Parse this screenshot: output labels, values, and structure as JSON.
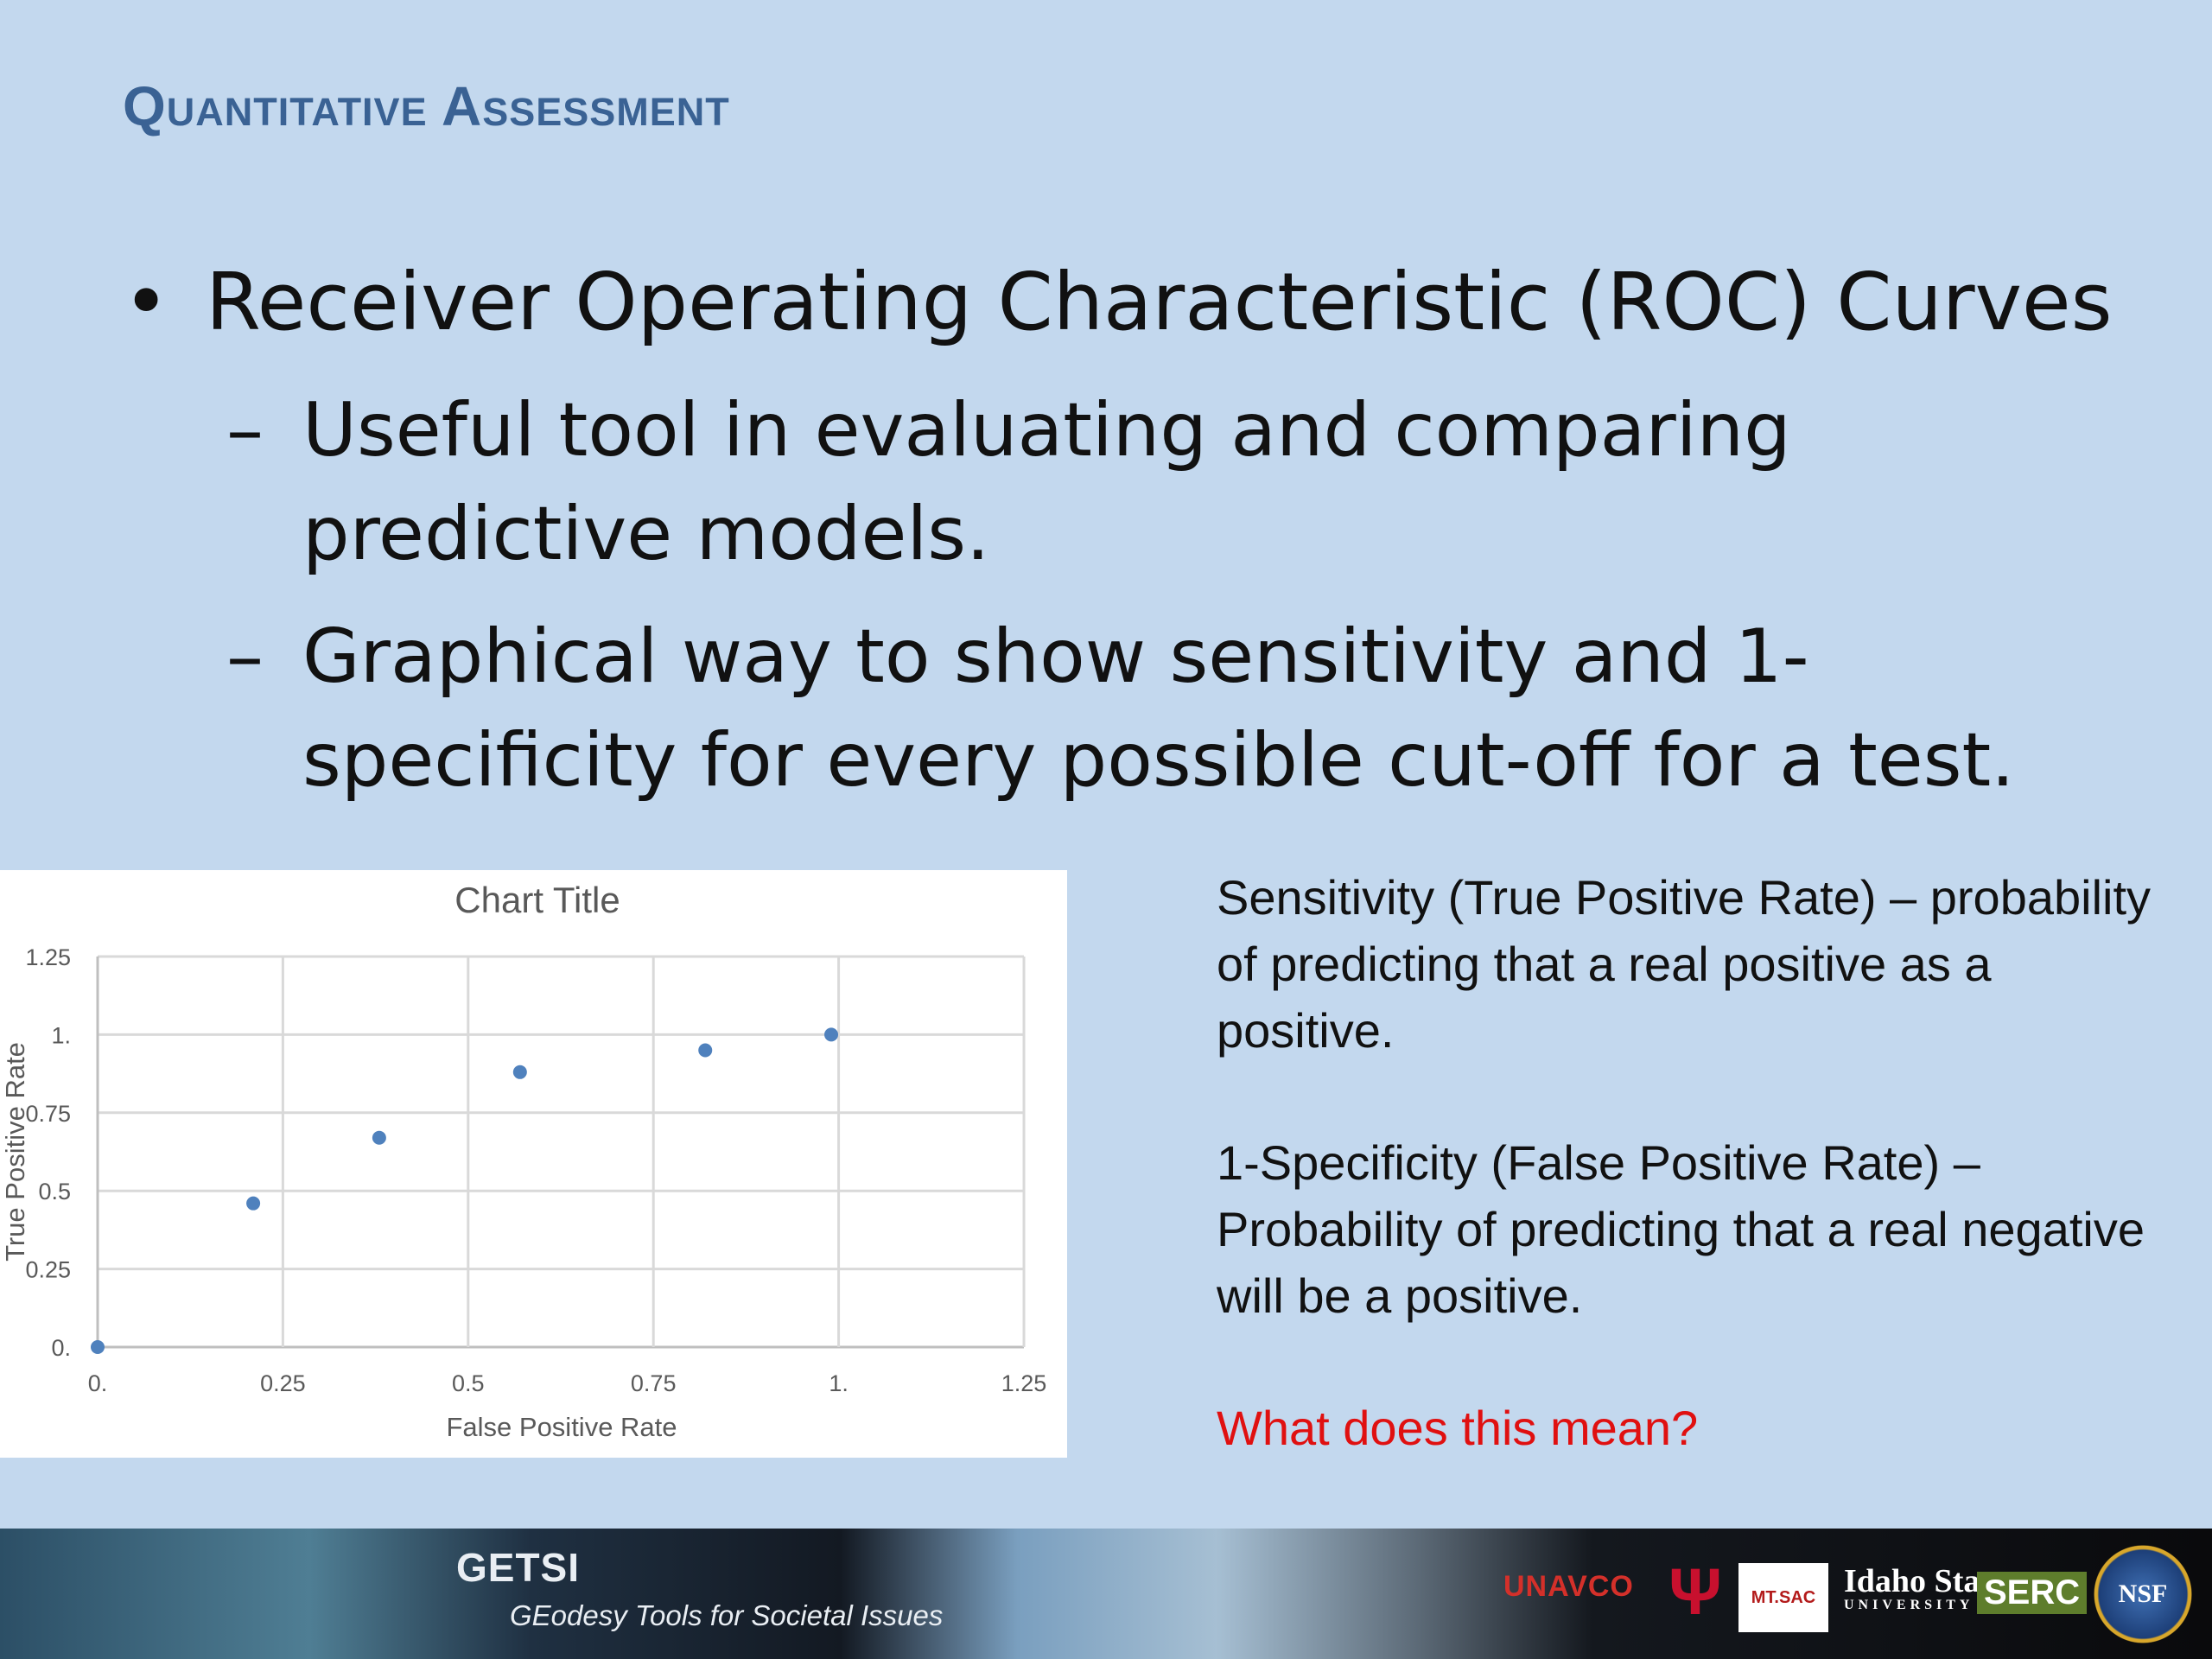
{
  "slide": {
    "title": "Quantitative Assessment",
    "bullet": "Receiver Operating Characteristic (ROC) Curves",
    "bullet_symbol": "•",
    "dash_symbol": "–",
    "sub_bullets": [
      "Useful tool in evaluating and comparing predictive models.",
      "Graphical way to show sensitivity and 1-specificity for every possible cut-off for a test."
    ],
    "definitions": [
      "Sensitivity (True Positive Rate) – probability of predicting that a real positive as a positive.",
      "1-Specificity (False Positive Rate) – Probability of predicting that a real negative will be a positive."
    ],
    "question": "What does this mean?"
  },
  "footer": {
    "banner_title": "GETSI",
    "banner_subtitle": "GEodesy Tools for Societal Issues",
    "logos": {
      "unavco": "UNAVCO",
      "iu": "Ψ",
      "mtsac": "MT.SAC",
      "idaho_main": "Idaho State",
      "idaho_sub": "UNIVERSITY",
      "serc": "SERC",
      "nsf": "NSF"
    }
  },
  "chart_data": {
    "type": "scatter",
    "title": "Chart Title",
    "xlabel": "False Positive Rate",
    "ylabel": "True Positive Rate",
    "xlim": [
      0,
      1.25
    ],
    "ylim": [
      0,
      1.25
    ],
    "x_ticks": [
      "0.",
      "0.25",
      "0.5",
      "0.75",
      "1.",
      "1.25"
    ],
    "y_ticks": [
      "0.",
      "0.25",
      "0.5",
      "0.75",
      "1.",
      "1.25"
    ],
    "grid": true,
    "marker_color": "#4f81bd",
    "points": [
      {
        "x": 0.0,
        "y": 0.0
      },
      {
        "x": 0.21,
        "y": 0.46
      },
      {
        "x": 0.38,
        "y": 0.67
      },
      {
        "x": 0.57,
        "y": 0.88
      },
      {
        "x": 0.82,
        "y": 0.95
      },
      {
        "x": 0.99,
        "y": 1.0
      }
    ]
  }
}
